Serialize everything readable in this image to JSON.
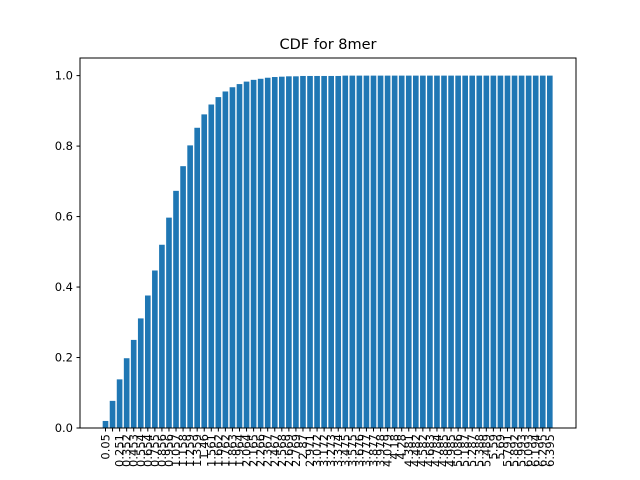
{
  "chart_data": {
    "type": "bar",
    "title": "CDF for 8mer",
    "xlabel": "",
    "ylabel": "",
    "ylim": [
      0,
      1.05
    ],
    "yticks": [
      "0.0",
      "0.2",
      "0.4",
      "0.6",
      "0.8",
      "1.0"
    ],
    "categories": [
      "0.05",
      "0.151",
      "0.251",
      "0.352",
      "0.453",
      "0.554",
      "0.654",
      "0.755",
      "0.856",
      "0.956",
      "1.057",
      "1.158",
      "1.259",
      "1.359",
      "1.46",
      "1.561",
      "1.662",
      "1.762",
      "1.863",
      "1.964",
      "2.064",
      "2.165",
      "2.266",
      "2.367",
      "2.467",
      "2.568",
      "2.669",
      "2.769",
      "2.87",
      "2.971",
      "3.072",
      "3.172",
      "3.273",
      "3.374",
      "3.475",
      "3.575",
      "3.676",
      "3.777",
      "3.877",
      "3.978",
      "4.079",
      "4.18",
      "4.28",
      "4.381",
      "4.482",
      "4.582",
      "4.683",
      "4.784",
      "4.885",
      "4.985",
      "5.086",
      "5.187",
      "5.287",
      "5.388",
      "5.489",
      "5.59",
      "5.69",
      "5.791",
      "5.892",
      "5.993",
      "6.093",
      "6.194",
      "6.295",
      "6.395"
    ],
    "visible_tick_labels": [
      "0.05",
      "0.251",
      "0.352",
      "0.453",
      "0.554",
      "0.654",
      "0.755",
      "0.856",
      "0.956",
      "1.057",
      "1.158",
      "1.259",
      "1.359",
      "1.46",
      "1.561",
      "1.662",
      "1.762",
      "1.863",
      "1.964",
      "2.064",
      "2.165",
      "2.266",
      "2.367",
      "2.467",
      "2.568",
      "2.669",
      "2.769",
      "2.87",
      "2.971",
      "3.072",
      "3.172",
      "3.273",
      "3.374",
      "3.475",
      "3.575",
      "3.676",
      "3.777",
      "3.877",
      "3.978",
      "4.079",
      "4.18",
      "4.28",
      "4.381",
      "4.482",
      "4.582",
      "4.683",
      "4.784",
      "4.885",
      "4.985",
      "5.086",
      "5.187",
      "5.287",
      "5.388",
      "5.489",
      "5.59",
      "5.69",
      "5.791",
      "5.892",
      "5.993",
      "6.093",
      "6.194",
      "6.295",
      "6.395"
    ],
    "values": [
      0.02,
      0.077,
      0.138,
      0.198,
      0.25,
      0.311,
      0.376,
      0.447,
      0.52,
      0.597,
      0.673,
      0.743,
      0.802,
      0.852,
      0.89,
      0.918,
      0.939,
      0.955,
      0.967,
      0.976,
      0.983,
      0.988,
      0.991,
      0.994,
      0.996,
      0.997,
      0.998,
      0.998,
      0.999,
      0.999,
      0.999,
      0.999,
      0.999,
      0.999,
      1.0,
      1.0,
      1.0,
      1.0,
      1.0,
      1.0,
      1.0,
      1.0,
      1.0,
      1.0,
      1.0,
      1.0,
      1.0,
      1.0,
      1.0,
      1.0,
      1.0,
      1.0,
      1.0,
      1.0,
      1.0,
      1.0,
      1.0,
      1.0,
      1.0,
      1.0,
      1.0,
      1.0,
      1.0,
      1.0
    ],
    "bar_color": "#1f77b4",
    "grid": false,
    "legend": "none"
  }
}
